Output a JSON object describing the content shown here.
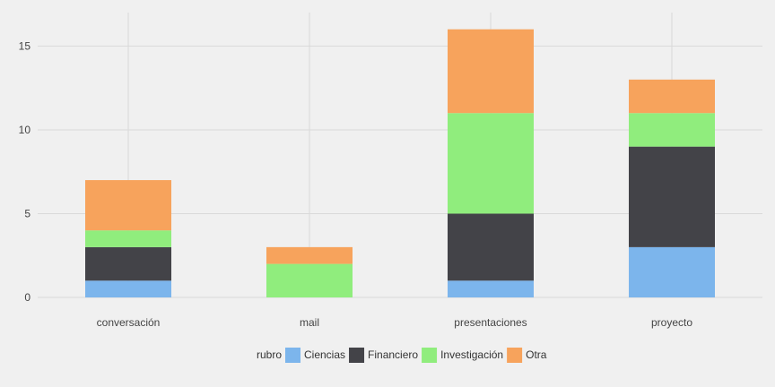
{
  "chart_data": {
    "type": "bar",
    "stacked": true,
    "categories": [
      "conversación",
      "mail",
      "presentaciones",
      "proyecto"
    ],
    "series": [
      {
        "name": "Ciencias",
        "color": "#7cb5ec",
        "values": [
          1,
          0,
          1,
          3
        ]
      },
      {
        "name": "Financiero",
        "color": "#434348",
        "values": [
          2,
          0,
          4,
          6
        ]
      },
      {
        "name": "Investigación",
        "color": "#90ed7d",
        "values": [
          1,
          2,
          6,
          2
        ]
      },
      {
        "name": "Otra",
        "color": "#f7a35c",
        "values": [
          3,
          1,
          5,
          2
        ]
      }
    ],
    "ylim": [
      0,
      17
    ],
    "yticks": [
      0,
      5,
      10,
      15
    ],
    "title": "",
    "xlabel": "",
    "ylabel": "",
    "grid": true,
    "legend": {
      "title": "rubro",
      "position": "bottom"
    },
    "background_color": "#f0f0f0",
    "grid_color": "#d9d9d9"
  }
}
